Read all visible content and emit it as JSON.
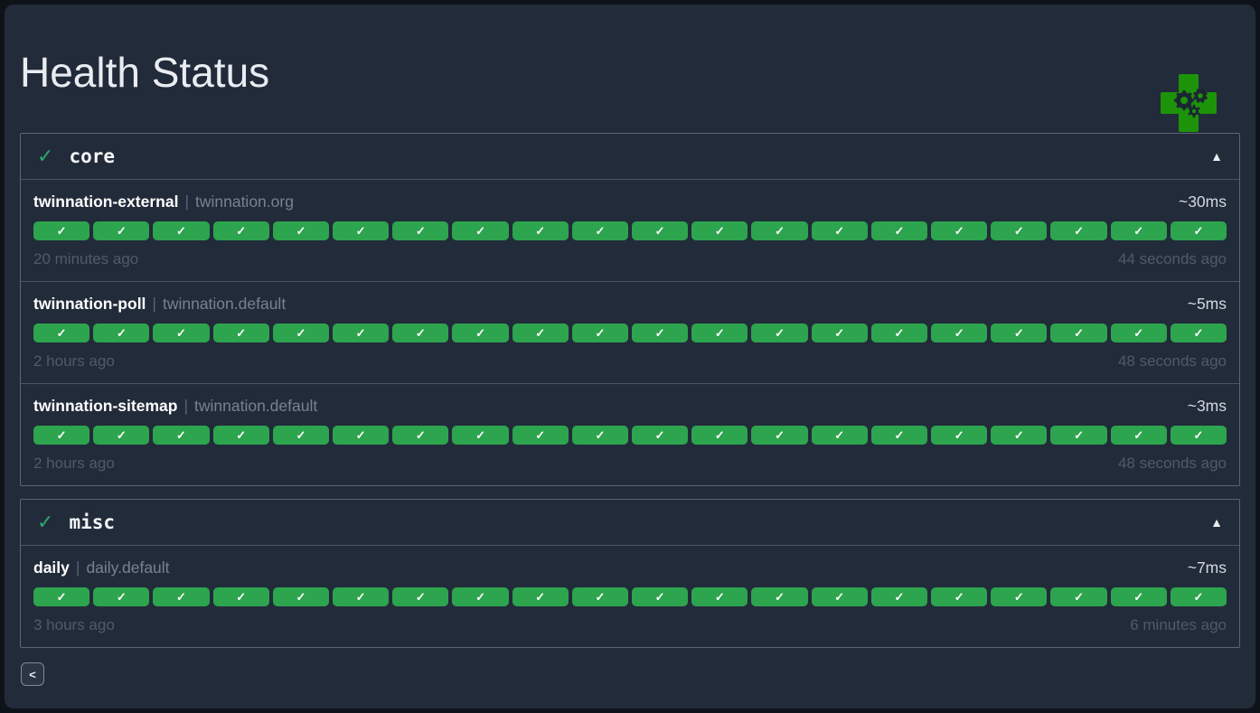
{
  "page": {
    "title": "Health Status",
    "back_label": "<"
  },
  "glyphs": {
    "check": "✓",
    "collapse": "▲",
    "pipe": "|"
  },
  "colors": {
    "success": "#2da44e",
    "header_check": "#2aa86a",
    "cross_green": "#1d9309"
  },
  "groups": [
    {
      "name": "core",
      "services": [
        {
          "name": "twinnation-external",
          "host": "twinnation.org",
          "latency": "~30ms",
          "oldest": "20 minutes ago",
          "newest": "44 seconds ago",
          "checks": 20
        },
        {
          "name": "twinnation-poll",
          "host": "twinnation.default",
          "latency": "~5ms",
          "oldest": "2 hours ago",
          "newest": "48 seconds ago",
          "checks": 20
        },
        {
          "name": "twinnation-sitemap",
          "host": "twinnation.default",
          "latency": "~3ms",
          "oldest": "2 hours ago",
          "newest": "48 seconds ago",
          "checks": 20
        }
      ]
    },
    {
      "name": "misc",
      "services": [
        {
          "name": "daily",
          "host": "daily.default",
          "latency": "~7ms",
          "oldest": "3 hours ago",
          "newest": "6 minutes ago",
          "checks": 20
        }
      ]
    }
  ]
}
